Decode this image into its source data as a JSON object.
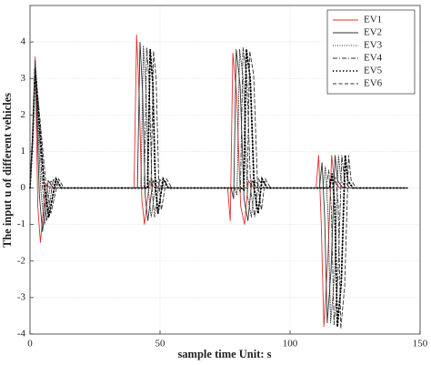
{
  "chart_data": {
    "type": "line",
    "xlabel": "sample time Unit: s",
    "ylabel": "The input u of different vehicles",
    "xlim": [
      0,
      150
    ],
    "xticks": [
      0,
      50,
      100,
      150
    ],
    "ylim": [
      -4,
      5
    ],
    "yticks": [
      -4,
      -3,
      -2,
      -1,
      0,
      1,
      2,
      3,
      4
    ],
    "grid": true,
    "legend": "top-right",
    "series": [
      {
        "name": "EV1",
        "color": "#e03030",
        "dash": "solid",
        "x": [
          0,
          1,
          2,
          3,
          4,
          6,
          8,
          12,
          40,
          41,
          42,
          43,
          44,
          46,
          48,
          76,
          77,
          78,
          79.5,
          81,
          82.5,
          84,
          86,
          110,
          111,
          112,
          113,
          114.5,
          116,
          117,
          119,
          145
        ],
        "values": [
          0,
          1.5,
          3.6,
          -0.5,
          -1.5,
          0.1,
          0,
          0,
          0,
          4.2,
          2.5,
          -0.3,
          -1.0,
          0.2,
          0,
          0,
          -0.9,
          3.7,
          2.5,
          -0.5,
          -1.0,
          0.2,
          0,
          0,
          0.9,
          -1,
          -3.8,
          -2,
          0.9,
          0.2,
          0,
          0
        ]
      },
      {
        "name": "EV2",
        "color": "#333333",
        "dash": "solid",
        "x": [
          0,
          1,
          2,
          3.6,
          4.8,
          7,
          9,
          13,
          41.3,
          42.3,
          43.3,
          44.3,
          45.3,
          47.3,
          49.3,
          77.3,
          78.3,
          79.3,
          80.8,
          82.3,
          83.8,
          85.3,
          87.3,
          111.3,
          112.3,
          113.3,
          114.3,
          115.8,
          117.3,
          118.3,
          120.3,
          145
        ],
        "values": [
          0,
          1.4,
          3.5,
          -0.2,
          -1.2,
          0.2,
          0,
          0,
          0,
          4.0,
          2.6,
          -0.2,
          -0.9,
          0.2,
          0,
          0,
          -0.3,
          3.8,
          2.8,
          -0.3,
          -0.9,
          0.2,
          0,
          0,
          0.7,
          -0.8,
          -3.7,
          -2.2,
          0.9,
          0.2,
          0,
          0
        ]
      },
      {
        "name": "EV3",
        "color": "#333333",
        "dash": "dotted",
        "x": [
          0,
          1,
          2,
          4.2,
          5.6,
          8,
          10,
          14,
          42.6,
          43.6,
          44.6,
          45.6,
          46.6,
          48.6,
          50.6,
          78.6,
          79.6,
          80.6,
          82.1,
          83.6,
          85.1,
          86.6,
          88.6,
          112.6,
          113.6,
          114.6,
          115.6,
          117.1,
          118.6,
          119.6,
          121.6,
          145
        ],
        "values": [
          0,
          1.4,
          3.4,
          -0.1,
          -1.0,
          0.2,
          0,
          0,
          0,
          3.9,
          2.7,
          -0.1,
          -0.8,
          0.2,
          0,
          0,
          -0.2,
          3.8,
          2.9,
          -0.2,
          -0.8,
          0.2,
          0,
          0,
          0.6,
          -0.7,
          -3.7,
          -2.4,
          0.9,
          0.2,
          0,
          0
        ]
      },
      {
        "name": "EV4",
        "color": "#333333",
        "dash": "dashdot",
        "x": [
          0,
          1,
          2,
          4.8,
          6.4,
          9,
          11,
          15,
          43.9,
          44.9,
          45.9,
          46.9,
          47.9,
          49.9,
          51.9,
          79.9,
          80.9,
          81.9,
          83.4,
          84.9,
          86.4,
          87.9,
          89.9,
          113.9,
          114.9,
          115.9,
          116.9,
          118.4,
          119.9,
          120.9,
          122.9,
          145
        ],
        "values": [
          0,
          1.3,
          3.4,
          0,
          -0.9,
          0.25,
          0,
          0,
          0,
          3.85,
          2.8,
          0,
          -0.8,
          0.25,
          0,
          0,
          -0.1,
          3.85,
          3.0,
          -0.1,
          -0.8,
          0.25,
          0,
          0,
          0.5,
          -0.6,
          -3.75,
          -2.5,
          0.9,
          0.2,
          0,
          0
        ]
      },
      {
        "name": "EV5",
        "color": "#000000",
        "dash": "dots",
        "x": [
          0,
          1,
          2,
          5.4,
          7.2,
          10,
          12,
          16,
          45.2,
          46.2,
          47.2,
          48.2,
          49.2,
          51.2,
          53.2,
          81.2,
          82.2,
          83.2,
          84.7,
          86.2,
          87.7,
          89.2,
          91.2,
          115.2,
          116.2,
          117.2,
          118.2,
          119.7,
          121.2,
          122.2,
          124.2,
          145
        ],
        "values": [
          0,
          1.3,
          3.3,
          0.1,
          -0.8,
          0.25,
          0,
          0,
          0,
          3.8,
          2.9,
          0.1,
          -0.7,
          0.25,
          0,
          0,
          -0.05,
          3.8,
          3.0,
          0,
          -0.7,
          0.25,
          0,
          0,
          0.4,
          -0.5,
          -3.8,
          -2.6,
          0.9,
          0.2,
          0,
          0
        ]
      },
      {
        "name": "EV6",
        "color": "#333333",
        "dash": "dashed",
        "x": [
          0,
          1,
          2,
          6,
          8,
          11,
          13,
          17,
          46.5,
          47.5,
          48.5,
          49.5,
          50.5,
          52.5,
          54.5,
          82.5,
          83.5,
          84.5,
          86,
          87.5,
          89,
          90.5,
          92.5,
          116.5,
          117.5,
          118.5,
          119.5,
          121,
          122.5,
          123.5,
          125.5,
          145
        ],
        "values": [
          0,
          1.2,
          3.3,
          0.2,
          -0.7,
          0.25,
          0,
          0,
          0,
          3.75,
          3.0,
          0.2,
          -0.6,
          0.25,
          0,
          0,
          0,
          3.75,
          3.1,
          0.1,
          -0.6,
          0.25,
          0,
          0,
          0.3,
          -0.4,
          -3.85,
          -2.7,
          0.9,
          0.2,
          0,
          0
        ]
      }
    ]
  }
}
